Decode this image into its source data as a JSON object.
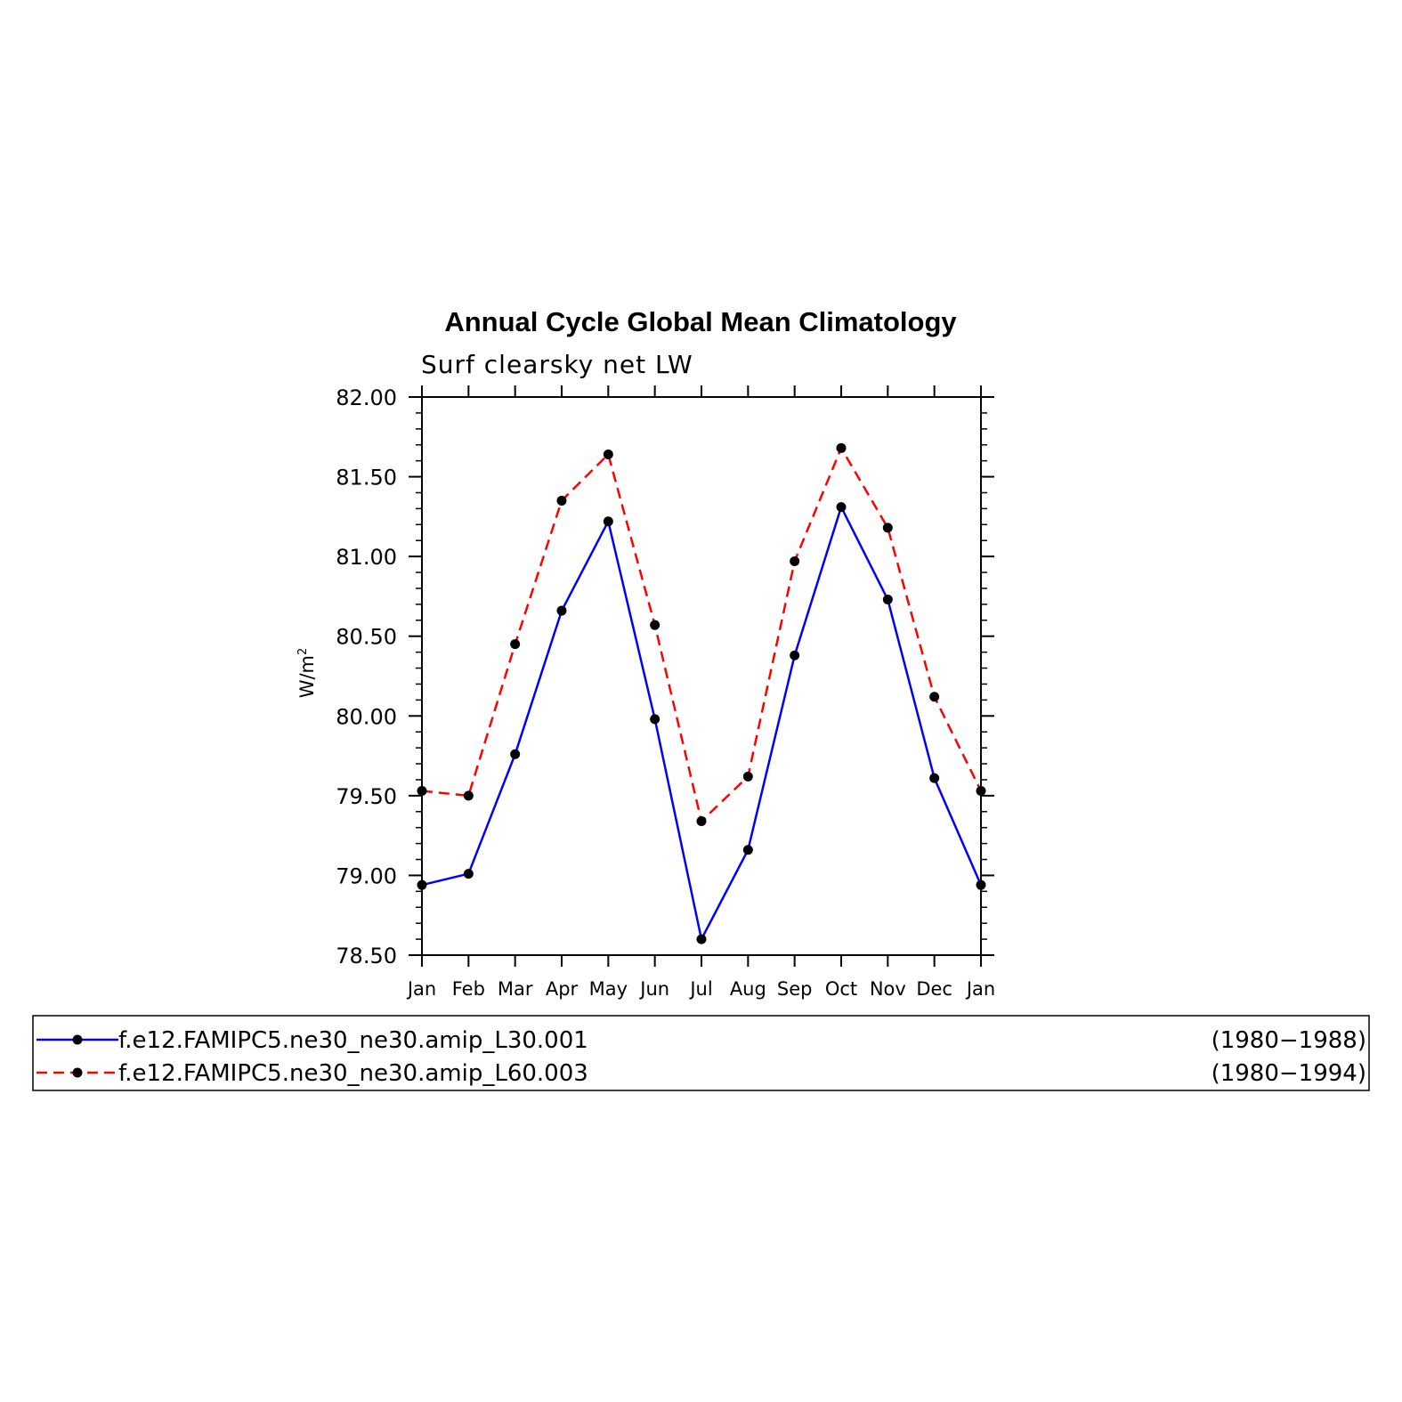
{
  "chart_data": {
    "type": "line",
    "title": "Annual Cycle Global Mean Climatology",
    "subtitle": "Surf clearsky net LW",
    "ylabel": "W/m",
    "ylabel_superscript": "2",
    "xlabel": "",
    "categories": [
      "Jan",
      "Feb",
      "Mar",
      "Apr",
      "May",
      "Jun",
      "Jul",
      "Aug",
      "Sep",
      "Oct",
      "Nov",
      "Dec",
      "Jan"
    ],
    "ylim": [
      78.5,
      82.0
    ],
    "yticks": [
      "78.50",
      "79.00",
      "79.50",
      "80.00",
      "80.50",
      "81.00",
      "81.50",
      "82.00"
    ],
    "grid": false,
    "legend_position": "bottom",
    "series": [
      {
        "name": "f.e12.FAMIPC5.ne30_ne30.amip_L30.001",
        "period": "(1980−1988)",
        "color": "#0000ff",
        "dash": "solid",
        "values": [
          78.94,
          79.01,
          79.76,
          80.66,
          81.22,
          79.98,
          78.6,
          79.16,
          80.38,
          81.31,
          80.73,
          79.61,
          78.94
        ]
      },
      {
        "name": "f.e12.FAMIPC5.ne30_ne30.amip_L60.003",
        "period": "(1980−1994)",
        "color": "#ff0000",
        "dash": "dashed",
        "values": [
          79.53,
          79.5,
          80.45,
          81.35,
          81.64,
          80.57,
          79.34,
          79.62,
          80.97,
          81.68,
          81.18,
          80.12,
          79.53
        ]
      }
    ]
  }
}
